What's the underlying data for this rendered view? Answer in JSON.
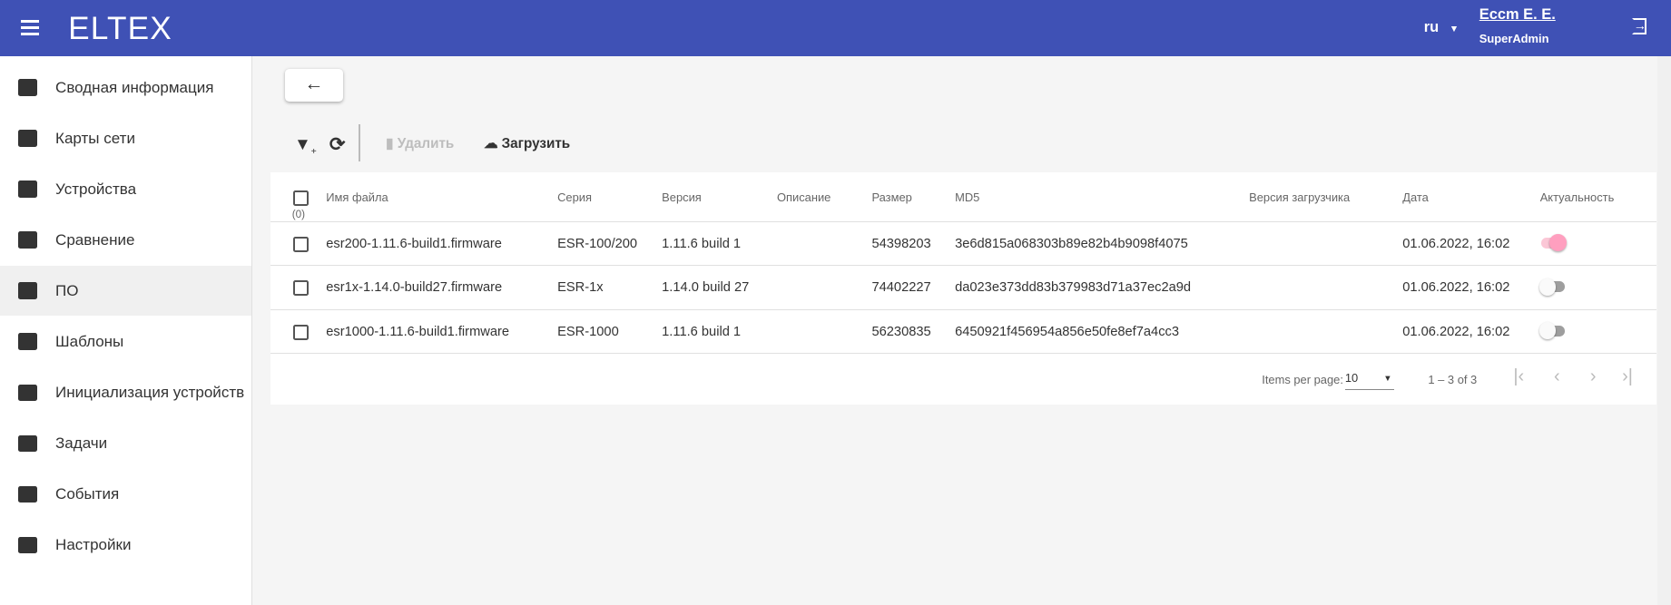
{
  "header": {
    "brand": "ELTEX",
    "lang": "ru",
    "user_name": "Ессm E. E.",
    "user_role": "SuperAdmin"
  },
  "sidebar": {
    "items": [
      {
        "label": "Сводная информация",
        "icon": "dashboard-icon"
      },
      {
        "label": "Карты сети",
        "icon": "map-icon"
      },
      {
        "label": "Устройства",
        "icon": "devices-icon"
      },
      {
        "label": "Сравнение",
        "icon": "compare-icon"
      },
      {
        "label": "ПО",
        "icon": "store-icon",
        "selected": true
      },
      {
        "label": "Шаблоны",
        "icon": "wrench-icon"
      },
      {
        "label": "Инициализация устройств",
        "icon": "init-icon"
      },
      {
        "label": "Задачи",
        "icon": "assignment-icon"
      },
      {
        "label": "События",
        "icon": "event-icon"
      },
      {
        "label": "Настройки",
        "icon": "gear-icon"
      }
    ]
  },
  "toolbar": {
    "back": "←",
    "delete": "Удалить",
    "upload": "Загрузить"
  },
  "table": {
    "select_count": "(0)",
    "columns": [
      "Имя файла",
      "Серия",
      "Версия",
      "Описание",
      "Размер",
      "MD5",
      "Версия загрузчика",
      "Дата",
      "Актуальность"
    ],
    "rows": [
      {
        "name": "esr200-1.11.6-build1.firmware",
        "series": "ESR-100/200",
        "version": "1.11.6 build 1",
        "desc": "",
        "size": "54398203",
        "md5": "3e6d815a068303b89e82b4b9098f4075",
        "loader": "",
        "date": "01.06.2022, 16:02",
        "actual": true
      },
      {
        "name": "esr1x-1.14.0-build27.firmware",
        "series": "ESR-1x",
        "version": "1.14.0 build 27",
        "desc": "",
        "size": "74402227",
        "md5": "da023e373dd83b379983d71a37ec2a9d",
        "loader": "",
        "date": "01.06.2022, 16:02",
        "actual": false
      },
      {
        "name": "esr1000-1.11.6-build1.firmware",
        "series": "ESR-1000",
        "version": "1.11.6 build 1",
        "desc": "",
        "size": "56230835",
        "md5": "6450921f456954a856e50fe8ef7a4cc3",
        "loader": "",
        "date": "01.06.2022, 16:02",
        "actual": false
      }
    ]
  },
  "paginator": {
    "items_label": "Items per page:",
    "page_size": "10",
    "range": "1 – 3 of 3"
  },
  "colors": {
    "header": "#3f51b5",
    "toggle_on": "#ff9fbf"
  }
}
